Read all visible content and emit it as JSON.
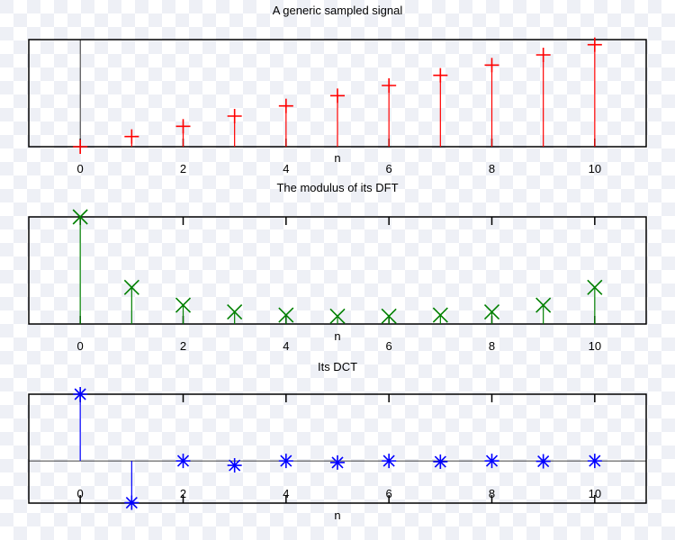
{
  "chart_data": [
    {
      "type": "stem",
      "title": "A generic sampled signal",
      "xlabel": "n",
      "ylabel": "",
      "x": [
        0,
        1,
        2,
        3,
        4,
        5,
        6,
        7,
        8,
        9,
        10
      ],
      "values": [
        0,
        1,
        2,
        3,
        4,
        5,
        6,
        7,
        8,
        9,
        10
      ],
      "marker": "plus",
      "color": "#ff0000",
      "xlim": [
        -1,
        11
      ],
      "ylim": [
        0,
        10.5
      ],
      "x_ticks": [
        0,
        2,
        4,
        6,
        8,
        10
      ],
      "zero_line": false
    },
    {
      "type": "stem",
      "title": "The modulus of its DFT",
      "xlabel": "n",
      "ylabel": "",
      "x": [
        0,
        1,
        2,
        3,
        4,
        5,
        6,
        7,
        8,
        9,
        10
      ],
      "values": [
        55,
        18.8,
        9.7,
        6.2,
        4.6,
        4.0,
        4.0,
        4.6,
        6.2,
        9.7,
        18.8
      ],
      "marker": "x",
      "color": "#008000",
      "xlim": [
        -1,
        11
      ],
      "ylim": [
        0,
        55
      ],
      "x_ticks": [
        0,
        2,
        4,
        6,
        8,
        10
      ],
      "zero_line": false
    },
    {
      "type": "stem",
      "title": "Its DCT",
      "xlabel": "n",
      "ylabel": "",
      "x": [
        0,
        1,
        2,
        3,
        4,
        5,
        6,
        7,
        8,
        9,
        10
      ],
      "values": [
        16.6,
        -10.4,
        0,
        -1.1,
        0,
        -0.4,
        0,
        -0.2,
        0,
        -0.1,
        0
      ],
      "marker": "star",
      "color": "#0000ff",
      "xlim": [
        -1,
        11
      ],
      "ylim": [
        -10.5,
        16.6
      ],
      "x_ticks": [
        0,
        2,
        4,
        6,
        8,
        10
      ],
      "zero_line": true
    }
  ]
}
